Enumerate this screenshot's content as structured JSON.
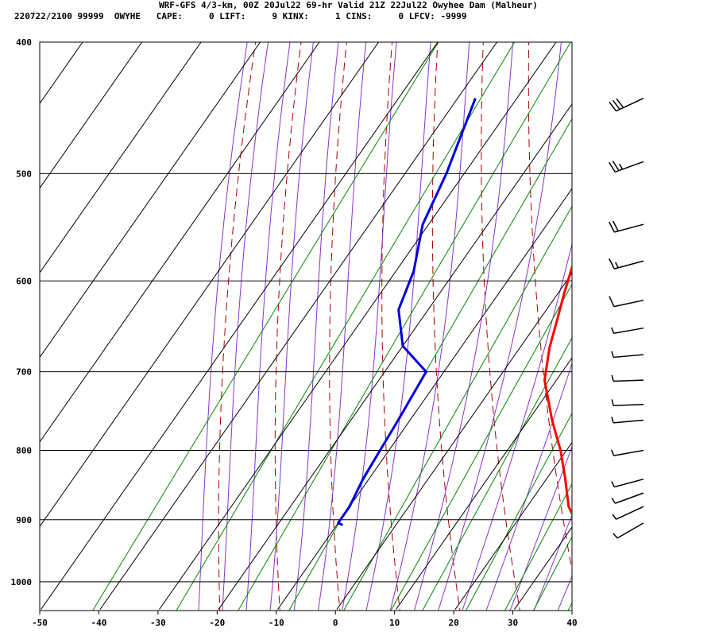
{
  "header": {
    "title": "WRF-GFS 4/3-km, 00Z 20Jul22 69-hr Valid 21Z 22Jul22 Owyhee Dam (Malheur)",
    "indices": "220722/2100 99999  OWYHE   CAPE:     0 LIFT:     9 KINX:     1 CINS:     0 LFCV: -9999"
  },
  "colors": {
    "temperature": "#ff0000",
    "dewpoint": "#0000dd",
    "dry_adiabat": "#aa0000",
    "moist_adiabat": "#8833cc",
    "mixing_ratio": "#008800",
    "grid": "#000000"
  },
  "chart_data": {
    "type": "line",
    "subtype": "skew-t log-p sounding",
    "x_axis": {
      "ticks": [
        -50,
        -40,
        -30,
        -20,
        -10,
        0,
        10,
        20,
        30,
        40
      ],
      "tick_labels": [
        "-50",
        "-40",
        "-30",
        "-20",
        "-10",
        "0",
        "10",
        "20",
        "30",
        "40"
      ],
      "range": [
        -50,
        40
      ]
    },
    "y_axis": {
      "scale": "log",
      "ticks": [
        400,
        500,
        600,
        700,
        800,
        900,
        1000
      ],
      "tick_labels": [
        "400",
        "500",
        "600",
        "700",
        "800",
        "900",
        "1000"
      ],
      "range": [
        400,
        1050
      ]
    },
    "grid": true,
    "series": [
      {
        "key": "temperature",
        "points": [
          [
            32.5,
            908
          ],
          [
            30,
            903
          ],
          [
            27,
            880
          ],
          [
            23,
            838
          ],
          [
            19,
            800
          ],
          [
            14,
            760
          ],
          [
            8,
            710
          ],
          [
            5,
            672
          ],
          [
            3,
            641
          ],
          [
            1,
            612
          ],
          [
            -3,
            553
          ],
          [
            -9,
            495
          ],
          [
            -16,
            440
          ]
        ]
      },
      {
        "key": "dewpoint",
        "points": [
          [
            -9,
            908
          ],
          [
            -10,
            905
          ],
          [
            -10,
            880
          ],
          [
            -11,
            840
          ],
          [
            -11.5,
            800
          ],
          [
            -12,
            760
          ],
          [
            -13,
            700
          ],
          [
            -20,
            670
          ],
          [
            -25,
            630
          ],
          [
            -27,
            590
          ],
          [
            -31,
            545
          ],
          [
            -33,
            500
          ],
          [
            -37,
            440
          ]
        ]
      }
    ],
    "wind_barbs": [
      {
        "p": 905,
        "dir": 240,
        "speed": 5
      },
      {
        "p": 880,
        "dir": 245,
        "speed": 5
      },
      {
        "p": 860,
        "dir": 250,
        "speed": 5
      },
      {
        "p": 840,
        "dir": 255,
        "speed": 5
      },
      {
        "p": 800,
        "dir": 260,
        "speed": 5
      },
      {
        "p": 760,
        "dir": 265,
        "speed": 5
      },
      {
        "p": 740,
        "dir": 268,
        "speed": 5
      },
      {
        "p": 710,
        "dir": 268,
        "speed": 5
      },
      {
        "p": 680,
        "dir": 265,
        "speed": 5
      },
      {
        "p": 650,
        "dir": 260,
        "speed": 5
      },
      {
        "p": 620,
        "dir": 258,
        "speed": 10
      },
      {
        "p": 580,
        "dir": 255,
        "speed": 15
      },
      {
        "p": 545,
        "dir": 255,
        "speed": 20
      },
      {
        "p": 490,
        "dir": 250,
        "speed": 25
      },
      {
        "p": 440,
        "dir": 245,
        "speed": 30
      }
    ]
  }
}
